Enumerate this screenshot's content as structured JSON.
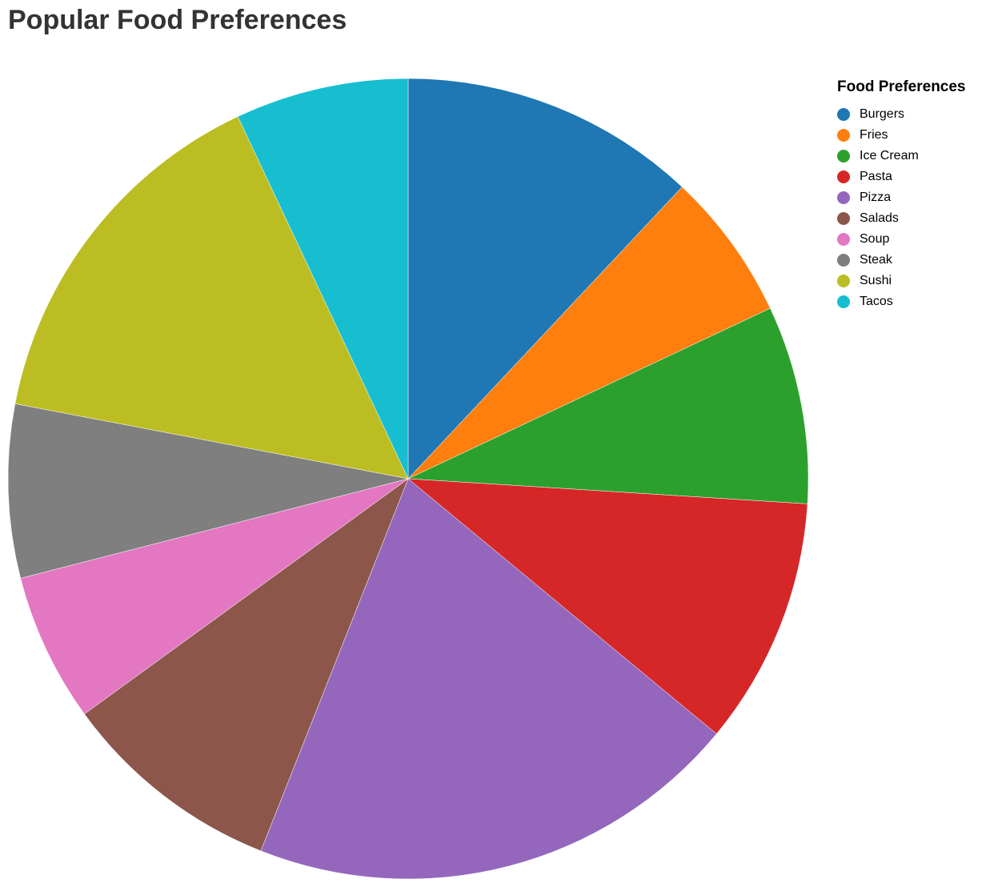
{
  "chart_data": {
    "type": "pie",
    "title": "Popular Food Preferences",
    "legend": {
      "title": "Food Preferences",
      "placement": "top-right"
    },
    "slices": [
      {
        "label": "Burgers",
        "value": 12,
        "color": "#1f77b4"
      },
      {
        "label": "Fries",
        "value": 6,
        "color": "#ff7f0e"
      },
      {
        "label": "Ice Cream",
        "value": 8,
        "color": "#2ca02c"
      },
      {
        "label": "Pasta",
        "value": 10,
        "color": "#d62728"
      },
      {
        "label": "Pizza",
        "value": 20,
        "color": "#9467bd"
      },
      {
        "label": "Salads",
        "value": 9,
        "color": "#8c564b"
      },
      {
        "label": "Soup",
        "value": 6,
        "color": "#e377c2"
      },
      {
        "label": "Steak",
        "value": 7,
        "color": "#7f7f7f"
      },
      {
        "label": "Sushi",
        "value": 15,
        "color": "#bcbd22"
      },
      {
        "label": "Tacos",
        "value": 7,
        "color": "#17becf"
      }
    ]
  }
}
